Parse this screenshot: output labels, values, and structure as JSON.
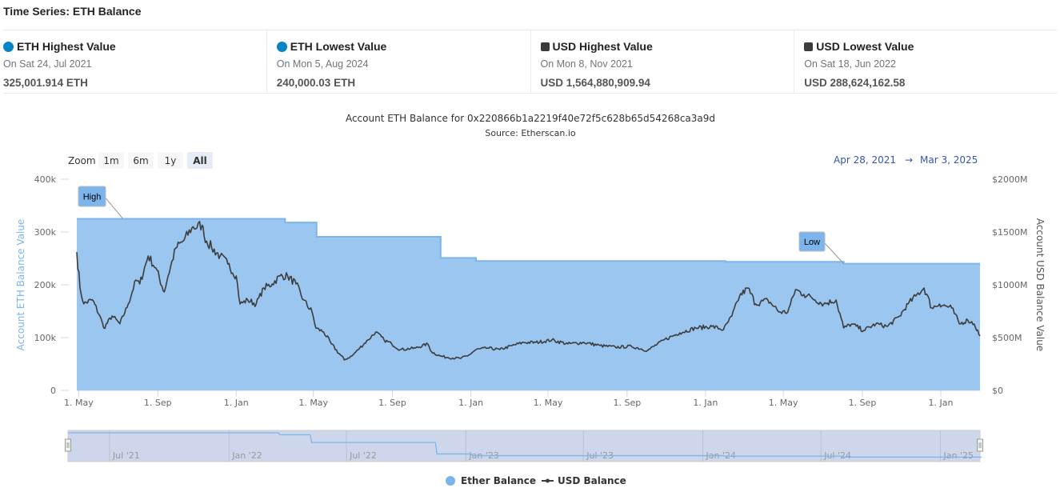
{
  "header": {
    "title": "Time Series: ETH Balance"
  },
  "cards": [
    {
      "title": "ETH Highest Value",
      "date": "On Sat 24, Jul 2021",
      "value": "325,001.914 ETH",
      "marker": "circle",
      "color": "#0784c3"
    },
    {
      "title": "ETH Lowest Value",
      "date": "On Mon 5, Aug 2024",
      "value": "240,000.03 ETH",
      "marker": "circle",
      "color": "#0784c3"
    },
    {
      "title": "USD Highest Value",
      "date": "On Mon 8, Nov 2021",
      "value": "USD 1,564,880,909.94",
      "marker": "square",
      "color": "#3c3c3c"
    },
    {
      "title": "USD Lowest Value",
      "date": "On Sat 18, Jun 2022",
      "value": "USD 288,624,162.58",
      "marker": "square",
      "color": "#3c3c3c"
    }
  ],
  "chart_data": {
    "type": "area+line",
    "title": "Account ETH Balance for 0x220866b1a2219f40e72f5c628b65d54268ca3a9d",
    "subtitle": "Source: Etherscan.io",
    "zoom": {
      "label": "Zoom",
      "buttons": [
        "1m",
        "6m",
        "1y",
        "All"
      ],
      "selected": "All"
    },
    "range": {
      "from": "Apr 28, 2021",
      "arrow": "→",
      "to": "Mar 3, 2025"
    },
    "x_start": "2021-04-28",
    "x_days_total": 1405,
    "x_ticks": [
      {
        "label": "1. May",
        "day": 3
      },
      {
        "label": "1. Sep",
        "day": 126
      },
      {
        "label": "1. Jan",
        "day": 248
      },
      {
        "label": "1. May",
        "day": 368
      },
      {
        "label": "1. Sep",
        "day": 491
      },
      {
        "label": "1. Jan",
        "day": 613
      },
      {
        "label": "1. May",
        "day": 733
      },
      {
        "label": "1. Sep",
        "day": 856
      },
      {
        "label": "1. Jan",
        "day": 978
      },
      {
        "label": "1. May",
        "day": 1099
      },
      {
        "label": "1. Sep",
        "day": 1222
      },
      {
        "label": "1. Jan",
        "day": 1344
      }
    ],
    "y_left": {
      "label": "Account ETH Balance Value",
      "range": [
        0,
        400000
      ],
      "ticks": [
        "0",
        "100k",
        "200k",
        "300k",
        "400k"
      ]
    },
    "y_right": {
      "label": "Account USD Balance Value",
      "range": [
        0,
        2000
      ],
      "ticks": [
        "$0",
        "$500M",
        "$1000M",
        "$1500M",
        "$2000M"
      ]
    },
    "series": [
      {
        "name": "Ether Balance",
        "type": "area",
        "color": "#7cb5ec",
        "steps": [
          [
            0,
            325000
          ],
          [
            324,
            318000
          ],
          [
            373,
            291000
          ],
          [
            566,
            251000
          ],
          [
            621,
            245000
          ],
          [
            1009,
            243500
          ],
          [
            1193,
            240000
          ],
          [
            1405,
            240000
          ]
        ]
      },
      {
        "name": "USD Balance",
        "type": "line",
        "unit": "USD millions",
        "color": "#3c3c3c",
        "points": [
          [
            0,
            1310
          ],
          [
            5,
            970
          ],
          [
            11,
            820
          ],
          [
            24,
            860
          ],
          [
            36,
            705
          ],
          [
            42,
            590
          ],
          [
            55,
            705
          ],
          [
            67,
            630
          ],
          [
            80,
            818
          ],
          [
            92,
            1045
          ],
          [
            98,
            1008
          ],
          [
            111,
            1273
          ],
          [
            123,
            1159
          ],
          [
            136,
            932
          ],
          [
            142,
            1083
          ],
          [
            154,
            1348
          ],
          [
            167,
            1424
          ],
          [
            179,
            1538
          ],
          [
            195,
            1565
          ],
          [
            198,
            1462
          ],
          [
            210,
            1348
          ],
          [
            223,
            1273
          ],
          [
            235,
            1197
          ],
          [
            248,
            1083
          ],
          [
            254,
            818
          ],
          [
            266,
            856
          ],
          [
            279,
            818
          ],
          [
            291,
            970
          ],
          [
            304,
            1008
          ],
          [
            316,
            1083
          ],
          [
            328,
            1083
          ],
          [
            341,
            1008
          ],
          [
            353,
            856
          ],
          [
            366,
            742
          ],
          [
            372,
            590
          ],
          [
            384,
            553
          ],
          [
            396,
            440
          ],
          [
            416,
            289
          ],
          [
            428,
            326
          ],
          [
            440,
            401
          ],
          [
            453,
            477
          ],
          [
            465,
            553
          ],
          [
            478,
            477
          ],
          [
            490,
            440
          ],
          [
            503,
            386
          ],
          [
            527,
            401
          ],
          [
            546,
            440
          ],
          [
            552,
            364
          ],
          [
            565,
            326
          ],
          [
            577,
            311
          ],
          [
            596,
            303
          ],
          [
            608,
            326
          ],
          [
            621,
            386
          ],
          [
            639,
            401
          ],
          [
            658,
            386
          ],
          [
            677,
            424
          ],
          [
            695,
            454
          ],
          [
            714,
            454
          ],
          [
            739,
            477
          ],
          [
            764,
            440
          ],
          [
            789,
            454
          ],
          [
            814,
            424
          ],
          [
            838,
            409
          ],
          [
            863,
            416
          ],
          [
            888,
            379
          ],
          [
            913,
            477
          ],
          [
            938,
            545
          ],
          [
            963,
            591
          ],
          [
            988,
            606
          ],
          [
            1006,
            576
          ],
          [
            1019,
            704
          ],
          [
            1031,
            894
          ],
          [
            1044,
            970
          ],
          [
            1056,
            818
          ],
          [
            1075,
            856
          ],
          [
            1093,
            742
          ],
          [
            1106,
            742
          ],
          [
            1118,
            954
          ],
          [
            1131,
            909
          ],
          [
            1143,
            879
          ],
          [
            1162,
            818
          ],
          [
            1181,
            856
          ],
          [
            1193,
            591
          ],
          [
            1205,
            629
          ],
          [
            1224,
            568
          ],
          [
            1243,
            629
          ],
          [
            1261,
            606
          ],
          [
            1280,
            704
          ],
          [
            1293,
            818
          ],
          [
            1305,
            894
          ],
          [
            1318,
            970
          ],
          [
            1330,
            780
          ],
          [
            1342,
            818
          ],
          [
            1361,
            780
          ],
          [
            1373,
            629
          ],
          [
            1386,
            666
          ],
          [
            1396,
            629
          ],
          [
            1405,
            515
          ]
        ]
      }
    ],
    "annotations": [
      {
        "label": "High",
        "day": 72,
        "value": 325000
      },
      {
        "label": "Low",
        "day": 1193,
        "value": 240000
      }
    ],
    "navigator": {
      "ticks": [
        {
          "label": "Jul '21",
          "day": 64
        },
        {
          "label": "Jan '22",
          "day": 248
        },
        {
          "label": "Jul '22",
          "day": 429
        },
        {
          "label": "Jan '23",
          "day": 613
        },
        {
          "label": "Jul '23",
          "day": 794
        },
        {
          "label": "Jan '24",
          "day": 978
        },
        {
          "label": "Jul '24",
          "day": 1160
        },
        {
          "label": "Jan '25",
          "day": 1344
        }
      ]
    },
    "legend": {
      "position": "bottom-center",
      "items": [
        "Ether Balance",
        "USD Balance"
      ]
    }
  }
}
